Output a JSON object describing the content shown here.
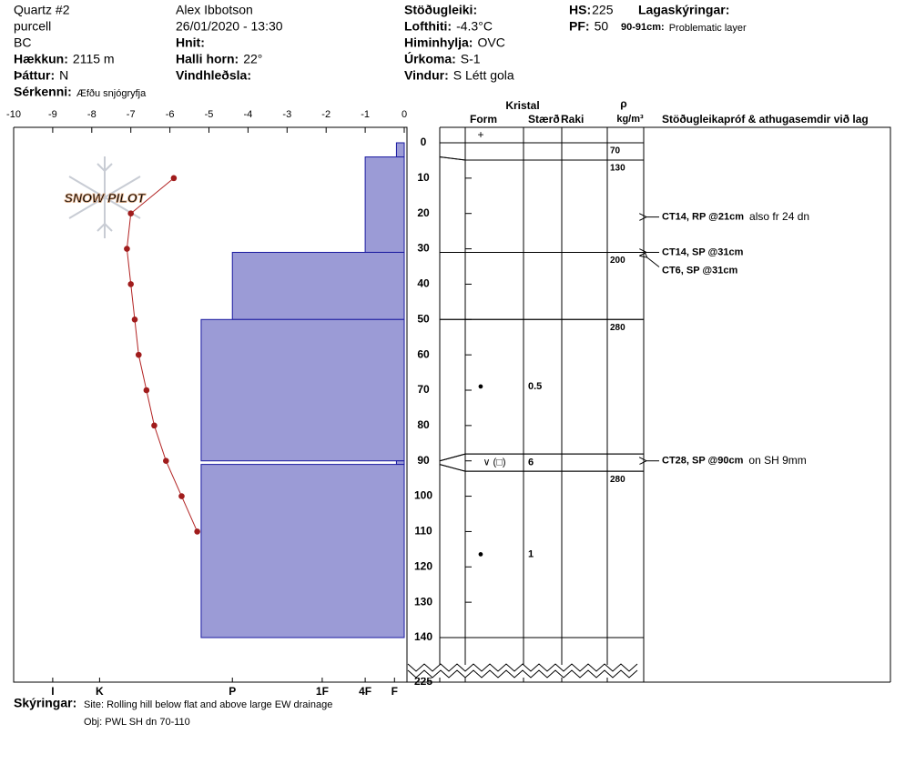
{
  "header": {
    "columns": [
      [
        {
          "text": "Quartz #2"
        },
        {
          "text": "purcell"
        },
        {
          "text": "BC"
        },
        {
          "label": "Hækkun:",
          "value": "2115 m"
        },
        {
          "label": "Þáttur:",
          "value": "N"
        },
        {
          "label": "Sérkenni:",
          "value": "Æfðu snjógryfja"
        }
      ],
      [
        {
          "text": "Alex Ibbotson"
        },
        {
          "text": "26/01/2020 - 13:30"
        },
        {
          "label": "Hnit:"
        },
        {
          "label": "Halli horn:",
          "value": "22°"
        },
        {
          "label": "Vindhleðsla:"
        }
      ],
      [
        {
          "label": "Stöðugleiki:"
        },
        {
          "label": "Lofthiti:",
          "value": "-4.3°C"
        },
        {
          "label": "Himinhylja:",
          "value": "OVC"
        },
        {
          "label": "Úrkoma:",
          "value": "S-1"
        },
        {
          "label": "Vindur:",
          "value": "S Létt gola"
        }
      ],
      [
        {
          "label": "HS:",
          "value": "225"
        },
        {
          "label": "PF:",
          "value": "50"
        }
      ],
      [
        {
          "label": "Lagaskýringar:"
        },
        {
          "label": "90-91cm:",
          "value": "Problematic layer"
        }
      ]
    ]
  },
  "footer": {
    "label": "Skýringar:",
    "lines": [
      "Site: Rolling hill below flat and above large EW drainage",
      "Obj: PWL SH dn 70-110"
    ]
  },
  "chart_data": {
    "type": "snowprofile",
    "watermark": "SNOW PILOT",
    "xlim": [
      -10,
      0
    ],
    "xticks": [
      -10,
      -9,
      -8,
      -7,
      -6,
      -5,
      -4,
      -3,
      -2,
      -1,
      0
    ],
    "ylim": [
      0,
      140
    ],
    "yticks": [
      0,
      10,
      20,
      30,
      40,
      50,
      60,
      70,
      80,
      90,
      100,
      110,
      120,
      130,
      140
    ],
    "hs_tick": 225,
    "hardness_lim": [
      0,
      100
    ],
    "hardness_ticks": [
      {
        "value": 90,
        "label": "I"
      },
      {
        "value": 78,
        "label": "K"
      },
      {
        "value": 44,
        "label": "P"
      },
      {
        "value": 21,
        "label": "1F"
      },
      {
        "value": 10,
        "label": "4F"
      },
      {
        "value": 2.5,
        "label": "F"
      }
    ],
    "temperature": {
      "color": "#b22222",
      "depth": [
        10,
        20,
        30,
        40,
        50,
        60,
        70,
        80,
        90,
        100,
        110
      ],
      "values": [
        -5.9,
        -7.0,
        -7.1,
        -7.0,
        -6.9,
        -6.8,
        -6.6,
        -6.4,
        -6.1,
        -5.7,
        -5.3
      ]
    },
    "layers": {
      "color": "#9b9bd6",
      "top": [
        0,
        4,
        31,
        50,
        90,
        91
      ],
      "bottom": [
        4,
        31,
        50,
        90,
        91,
        140
      ],
      "hardness": [
        2,
        10,
        44,
        52,
        2,
        52
      ],
      "form": [
        null,
        null,
        null,
        "●",
        "∨ (□)",
        "●"
      ],
      "size": [
        null,
        null,
        null,
        "0.5",
        "6",
        "1"
      ],
      "density": [
        70,
        130,
        200,
        280,
        null,
        280
      ]
    },
    "surface_form": "+",
    "column_headers": {
      "crystal": "Kristal",
      "form": "Form",
      "size": "Stærð",
      "moisture": "Raki",
      "rho": "ρ",
      "density_unit": "kg/m³",
      "tests": "Stöðugleikapróf & athugasemdir við lag"
    },
    "tests": [
      {
        "depth": 21,
        "text": "CT14, RP @21cm",
        "note": "also fr 24 dn"
      },
      {
        "depth": 31,
        "text": "CT14, SP @31cm"
      },
      {
        "depth": 31,
        "text": "CT6, SP @31cm"
      },
      {
        "depth": 90,
        "text": "CT28, SP @90cm",
        "note": "on SH 9mm"
      }
    ]
  }
}
